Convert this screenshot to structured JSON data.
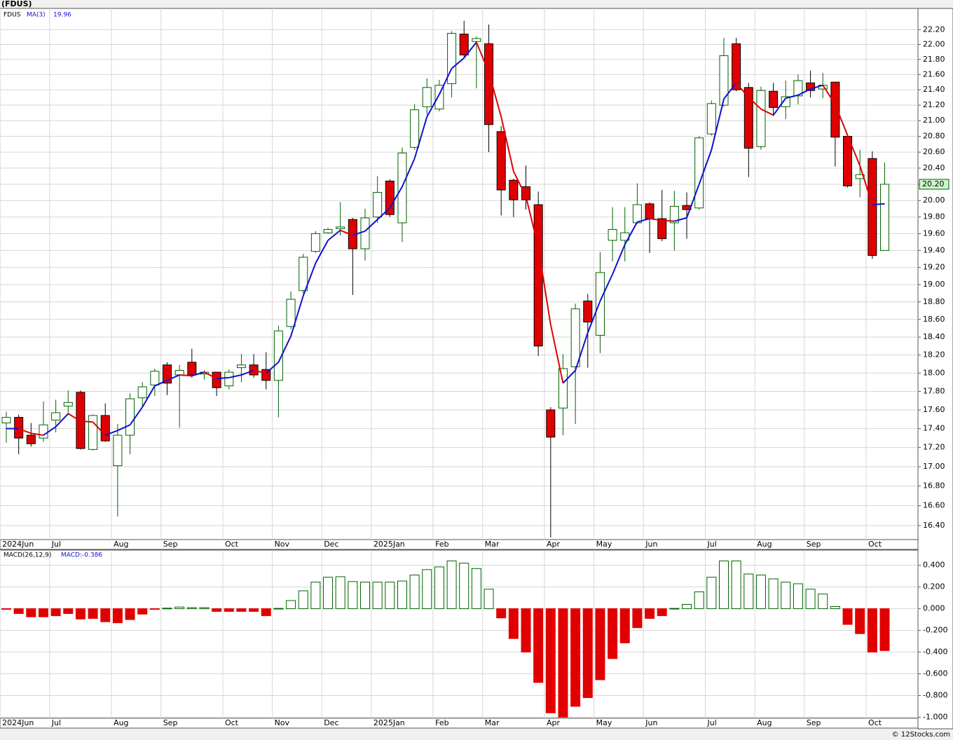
{
  "chart_data": [
    {
      "type": "candlestick",
      "title": "(FDUS)",
      "symbol": "FDUS",
      "log_scale": true,
      "grid": true,
      "up_color": "#006400",
      "down_color": "#e00000",
      "categories": [
        "2024Jun",
        null,
        null,
        null,
        "Jul",
        null,
        null,
        null,
        null,
        "Aug",
        null,
        null,
        null,
        "Sep",
        null,
        null,
        null,
        null,
        "Oct",
        null,
        null,
        null,
        "Nov",
        null,
        null,
        null,
        "Dec",
        null,
        null,
        null,
        "2025Jan",
        null,
        null,
        null,
        null,
        "Feb",
        null,
        null,
        null,
        "Mar",
        null,
        null,
        null,
        null,
        "Apr",
        null,
        null,
        null,
        "May",
        null,
        null,
        null,
        "Jun",
        null,
        null,
        null,
        null,
        "Jul",
        null,
        null,
        null,
        "Aug",
        null,
        null,
        null,
        "Sep",
        null,
        null,
        null,
        null,
        "Oct",
        null
      ],
      "open": [
        17.46,
        17.52,
        17.33,
        17.3,
        17.49,
        17.64,
        17.79,
        17.18,
        17.54,
        17.01,
        17.33,
        17.73,
        17.87,
        18.09,
        17.98,
        18.12,
        17.99,
        18.01,
        17.86,
        18.06,
        18.09,
        18.04,
        17.92,
        18.52,
        18.93,
        19.39,
        19.61,
        19.66,
        19.77,
        19.42,
        19.8,
        20.24,
        19.73,
        20.66,
        21.18,
        21.15,
        21.48,
        22.14,
        22.04,
        22.01,
        20.86,
        20.25,
        20.17,
        19.95,
        17.6,
        17.62,
        18.07,
        18.81,
        18.42,
        19.52,
        19.52,
        19.73,
        19.96,
        19.78,
        19.73,
        19.94,
        19.91,
        20.83,
        21.2,
        22.01,
        21.43,
        20.67,
        21.38,
        21.18,
        21.32,
        21.49,
        21.41,
        21.5,
        20.8,
        20.27,
        20.52,
        19.4
      ],
      "high": [
        17.58,
        17.55,
        17.46,
        17.69,
        17.71,
        17.81,
        17.81,
        17.55,
        17.67,
        17.45,
        17.78,
        17.9,
        18.05,
        18.12,
        18.09,
        18.27,
        18.03,
        18.01,
        18.04,
        18.21,
        18.21,
        18.23,
        18.53,
        18.92,
        19.36,
        19.63,
        19.67,
        19.98,
        19.79,
        19.9,
        20.3,
        20.26,
        20.66,
        21.21,
        21.55,
        21.53,
        22.18,
        22.32,
        22.11,
        22.27,
        20.93,
        20.27,
        20.43,
        20.11,
        17.63,
        18.21,
        18.78,
        18.89,
        19.38,
        19.92,
        19.92,
        20.21,
        19.98,
        20.13,
        20.12,
        20.1,
        20.8,
        21.26,
        22.09,
        22.09,
        21.49,
        21.44,
        21.49,
        21.52,
        21.6,
        21.65,
        21.62,
        21.5,
        20.8,
        20.63,
        20.61,
        20.47
      ],
      "low": [
        17.25,
        17.13,
        17.21,
        17.26,
        17.36,
        17.55,
        17.18,
        17.17,
        17.26,
        16.49,
        17.13,
        17.63,
        17.75,
        17.76,
        17.41,
        17.95,
        17.93,
        17.75,
        17.82,
        17.9,
        17.95,
        17.82,
        17.52,
        18.49,
        18.9,
        19.37,
        19.6,
        19.58,
        18.88,
        19.28,
        19.73,
        19.8,
        19.5,
        20.63,
        21.08,
        21.12,
        21.3,
        21.83,
        21.42,
        20.6,
        19.82,
        19.8,
        19.89,
        18.19,
        16.28,
        17.33,
        17.45,
        18.06,
        18.22,
        19.27,
        19.27,
        19.72,
        19.37,
        19.51,
        19.4,
        19.54,
        19.89,
        20.81,
        21.18,
        21.38,
        20.29,
        20.63,
        21.06,
        21.02,
        21.21,
        21.3,
        21.29,
        20.42,
        20.16,
        20.04,
        19.3,
        19.4
      ],
      "close": [
        17.52,
        17.3,
        17.24,
        17.44,
        17.57,
        17.68,
        17.19,
        17.54,
        17.27,
        17.33,
        17.72,
        17.85,
        18.02,
        17.89,
        18.03,
        17.98,
        18.01,
        17.84,
        18.01,
        18.09,
        17.98,
        17.92,
        18.47,
        18.83,
        19.32,
        19.6,
        19.65,
        19.68,
        19.42,
        19.79,
        20.1,
        19.83,
        20.59,
        21.14,
        21.43,
        21.46,
        22.15,
        21.86,
        22.08,
        20.95,
        20.13,
        20.01,
        20.01,
        18.3,
        17.31,
        18.05,
        18.72,
        18.57,
        19.14,
        19.65,
        19.61,
        19.95,
        19.78,
        19.54,
        19.93,
        19.89,
        20.78,
        21.22,
        21.85,
        21.4,
        20.65,
        21.39,
        21.17,
        21.31,
        21.52,
        21.39,
        21.46,
        20.79,
        20.18,
        20.32,
        19.34,
        20.2
      ],
      "ma": {
        "name": "MA(3)",
        "color": "#1010d0",
        "fall_color": "#e00000",
        "last": 19.96,
        "values": [
          17.4,
          17.4,
          17.35,
          17.33,
          17.42,
          17.56,
          17.48,
          17.47,
          17.33,
          17.38,
          17.44,
          17.63,
          17.86,
          17.92,
          17.98,
          17.97,
          18.01,
          17.94,
          17.95,
          17.98,
          18.03,
          18.0,
          18.12,
          18.41,
          18.87,
          19.25,
          19.52,
          19.64,
          19.58,
          19.63,
          19.77,
          19.91,
          20.17,
          20.52,
          21.05,
          21.34,
          21.68,
          21.82,
          22.03,
          21.63,
          21.05,
          20.36,
          20.05,
          19.44,
          18.54,
          17.89,
          18.03,
          18.45,
          18.81,
          19.12,
          19.47,
          19.74,
          19.78,
          19.76,
          19.75,
          19.79,
          20.2,
          20.63,
          21.28,
          21.49,
          21.3,
          21.15,
          21.07,
          21.29,
          21.33,
          21.41,
          21.46,
          21.21,
          20.81,
          20.43,
          19.95,
          19.96
        ]
      },
      "last_tag": {
        "value": 20.2,
        "label": "20.20"
      },
      "ylim": [
        16.26,
        22.49
      ],
      "yticks": [
        {
          "value": 16.4,
          "label": "16.40"
        },
        {
          "value": 16.6,
          "label": "16.60"
        },
        {
          "value": 16.8,
          "label": "16.80"
        },
        {
          "value": 17.0,
          "label": "17.00"
        },
        {
          "value": 17.2,
          "label": "17.20"
        },
        {
          "value": 17.4,
          "label": "17.40"
        },
        {
          "value": 17.6,
          "label": "17.60"
        },
        {
          "value": 17.8,
          "label": "17.80"
        },
        {
          "value": 18.0,
          "label": "18.00"
        },
        {
          "value": 18.2,
          "label": "18.20"
        },
        {
          "value": 18.4,
          "label": "18.40"
        },
        {
          "value": 18.6,
          "label": "18.60"
        },
        {
          "value": 18.8,
          "label": "18.80"
        },
        {
          "value": 19.0,
          "label": "19.00"
        },
        {
          "value": 19.2,
          "label": "19.20"
        },
        {
          "value": 19.4,
          "label": "19.40"
        },
        {
          "value": 19.6,
          "label": "19.60"
        },
        {
          "value": 19.8,
          "label": "19.80"
        },
        {
          "value": 20.0,
          "label": "20.00"
        },
        {
          "value": 20.2,
          "label": "20.20"
        },
        {
          "value": 20.4,
          "label": "20.40"
        },
        {
          "value": 20.6,
          "label": "20.60"
        },
        {
          "value": 20.8,
          "label": "20.80"
        },
        {
          "value": 21.0,
          "label": "21.00"
        },
        {
          "value": 21.2,
          "label": "21.20"
        },
        {
          "value": 21.4,
          "label": "21.40"
        },
        {
          "value": 21.6,
          "label": "21.60"
        },
        {
          "value": 21.8,
          "label": "21.80"
        },
        {
          "value": 22.0,
          "label": "22.00"
        },
        {
          "value": 22.2,
          "label": "22.20"
        }
      ]
    },
    {
      "type": "bar",
      "label": "MACD(26,12,9)",
      "value_label": "MACD:-0.386",
      "grid": true,
      "up_color": "#006400",
      "down_color": "#e00000",
      "values": [
        -0.005,
        -0.045,
        -0.075,
        -0.075,
        -0.065,
        -0.045,
        -0.095,
        -0.09,
        -0.12,
        -0.13,
        -0.1,
        -0.05,
        -0.005,
        0.005,
        0.015,
        0.01,
        0.01,
        -0.025,
        -0.025,
        -0.025,
        -0.025,
        -0.065,
        0.003,
        0.075,
        0.165,
        0.245,
        0.29,
        0.295,
        0.25,
        0.245,
        0.245,
        0.245,
        0.255,
        0.31,
        0.36,
        0.385,
        0.44,
        0.42,
        0.37,
        0.18,
        -0.085,
        -0.275,
        -0.4,
        -0.68,
        -0.96,
        -1.0,
        -0.9,
        -0.82,
        -0.655,
        -0.46,
        -0.315,
        -0.175,
        -0.09,
        -0.065,
        0.003,
        0.04,
        0.155,
        0.29,
        0.44,
        0.44,
        0.32,
        0.31,
        0.275,
        0.245,
        0.23,
        0.18,
        0.135,
        0.02,
        -0.145,
        -0.23,
        -0.4,
        -0.386
      ],
      "ylim": [
        -1.01,
        0.54
      ],
      "yticks": [
        {
          "value": -1.0,
          "label": "-1.000"
        },
        {
          "value": -0.8,
          "label": "-0.800"
        },
        {
          "value": -0.6,
          "label": "-0.600"
        },
        {
          "value": -0.4,
          "label": "-0.400"
        },
        {
          "value": -0.2,
          "label": "-0.200"
        },
        {
          "value": 0,
          "label": "0.000"
        },
        {
          "value": 0.2,
          "label": "0.200"
        },
        {
          "value": 0.4,
          "label": "0.400"
        }
      ]
    }
  ],
  "footer": "© 12Stocks.com"
}
